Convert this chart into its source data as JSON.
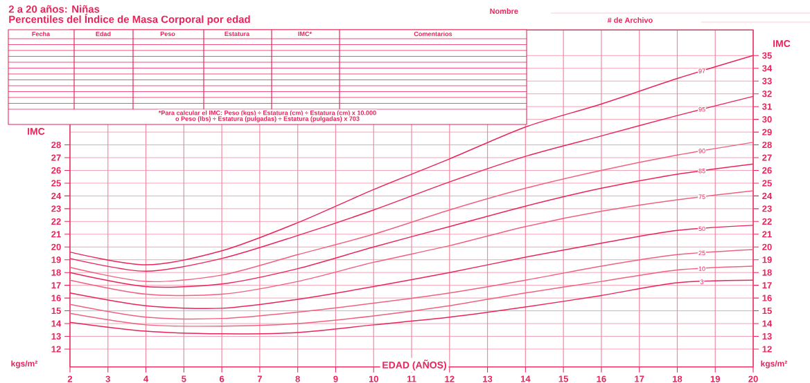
{
  "chart_data": {
    "type": "line",
    "title": "2 a 20 años: Niñas",
    "subtitle": "Percentiles del Índice de Masa Corporal por edad",
    "xlabel": "EDAD (AÑOS)",
    "ylabel": "IMC",
    "y2label": "IMC",
    "annotations": [
      "Fecha",
      "Edad",
      "Peso",
      "Estatura",
      "IMC*",
      "Comentarios",
      "*Para calcular el IMC: Peso (kgs) ÷ Estatura (cm) ÷ Estatura (cm) x 10.000",
      "o Peso (lbs) ÷ Estatura (pulgadas) ÷ Estatura (pulgadas) x 703",
      "Nombre",
      "# de Archivo",
      "kgs/m²",
      "kgs/m²"
    ],
    "x": [
      2,
      4,
      6,
      8,
      10,
      12,
      14,
      16,
      18,
      20
    ],
    "series": [
      {
        "name": "97",
        "color": "#e8245a",
        "values": [
          19.6,
          18.6,
          19.7,
          21.9,
          24.5,
          26.9,
          29.4,
          31.2,
          33.2,
          35.0
        ]
      },
      {
        "name": "95",
        "color": "#e8245a",
        "values": [
          19.1,
          18.1,
          19.1,
          20.9,
          22.9,
          25.1,
          27.1,
          28.7,
          30.3,
          31.8
        ]
      },
      {
        "name": "90",
        "color": "#f0607f",
        "values": [
          18.4,
          17.3,
          17.8,
          19.4,
          21.0,
          22.9,
          24.6,
          26.0,
          27.2,
          28.2
        ]
      },
      {
        "name": "85",
        "color": "#e8245a",
        "values": [
          18.0,
          16.9,
          17.1,
          18.3,
          20.0,
          21.6,
          23.2,
          24.6,
          25.7,
          26.5
        ]
      },
      {
        "name": "75",
        "color": "#f0607f",
        "values": [
          17.4,
          16.3,
          16.3,
          17.3,
          18.8,
          20.1,
          21.6,
          22.8,
          23.7,
          24.4
        ]
      },
      {
        "name": "50",
        "color": "#e8245a",
        "values": [
          16.4,
          15.4,
          15.2,
          15.9,
          16.9,
          18.0,
          19.2,
          20.3,
          21.3,
          21.7
        ]
      },
      {
        "name": "25",
        "color": "#f0607f",
        "values": [
          15.5,
          14.5,
          14.4,
          14.9,
          15.6,
          16.4,
          17.4,
          18.5,
          19.4,
          19.8
        ]
      },
      {
        "name": "10",
        "color": "#f0607f",
        "values": [
          14.8,
          13.9,
          13.8,
          14.0,
          14.6,
          15.4,
          16.4,
          17.3,
          18.2,
          18.5
        ]
      },
      {
        "name": "3",
        "color": "#e8245a",
        "values": [
          14.1,
          13.4,
          13.2,
          13.3,
          13.9,
          14.5,
          15.3,
          16.2,
          17.2,
          17.4
        ]
      }
    ],
    "xlim": [
      2,
      20
    ],
    "ylim": [
      10.6,
      37
    ],
    "xticks": [
      2,
      3,
      4,
      5,
      6,
      7,
      8,
      9,
      10,
      11,
      12,
      13,
      14,
      15,
      16,
      17,
      18,
      19,
      20
    ],
    "yticks": [
      12,
      13,
      14,
      15,
      16,
      17,
      18,
      19,
      20,
      21,
      22,
      23,
      24,
      25,
      26,
      27,
      28
    ],
    "y2lim": [
      10.6,
      37
    ],
    "y2ticks": [
      12,
      13,
      14,
      15,
      16,
      17,
      18,
      19,
      20,
      21,
      22,
      23,
      24,
      25,
      26,
      27,
      28,
      29,
      30,
      31,
      32,
      33,
      34,
      35
    ],
    "grid": true
  }
}
